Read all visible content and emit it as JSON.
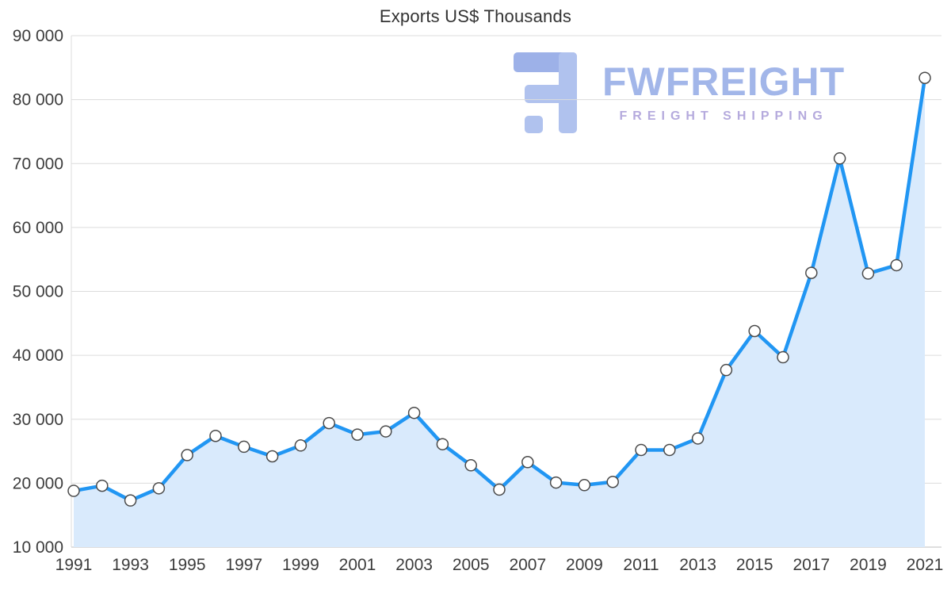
{
  "chart_data": {
    "type": "area",
    "title": "Exports US$ Thousands",
    "x": [
      1991,
      1992,
      1993,
      1994,
      1995,
      1996,
      1997,
      1998,
      1999,
      2000,
      2001,
      2002,
      2003,
      2004,
      2005,
      2006,
      2007,
      2008,
      2009,
      2010,
      2011,
      2012,
      2013,
      2014,
      2015,
      2016,
      2017,
      2018,
      2019,
      2020,
      2021
    ],
    "values": [
      18800,
      19600,
      17300,
      19200,
      24400,
      27400,
      25700,
      24200,
      25900,
      29400,
      27600,
      28100,
      31000,
      26100,
      22800,
      19000,
      23300,
      20100,
      19700,
      20200,
      25200,
      25200,
      27000,
      37700,
      43800,
      39700,
      52900,
      70800,
      52800,
      54100,
      83400
    ],
    "ylim": [
      10000,
      90000
    ],
    "yticks": [
      10000,
      20000,
      30000,
      40000,
      50000,
      60000,
      70000,
      80000,
      90000
    ],
    "ytick_labels": [
      "10 000",
      "20 000",
      "30 000",
      "40 000",
      "50 000",
      "60 000",
      "70 000",
      "80 000",
      "90 000"
    ],
    "xtick_labels": [
      "1991",
      "1993",
      "1995",
      "1997",
      "1999",
      "2001",
      "2003",
      "2005",
      "2007",
      "2009",
      "2011",
      "2013",
      "2015",
      "2017",
      "2019",
      "2021"
    ],
    "grid": true,
    "legend": "none",
    "line_color": "#2196f3",
    "fill_color": "#d9eafc",
    "marker_style": "white-circle-dark-outline"
  },
  "watermark": {
    "brand": "FWFREIGHT",
    "tagline": "FREIGHT SHIPPING",
    "brand_color": "#a2b6e9",
    "tagline_color": "#b5aadd",
    "logo_color": "#b0c2ee"
  }
}
